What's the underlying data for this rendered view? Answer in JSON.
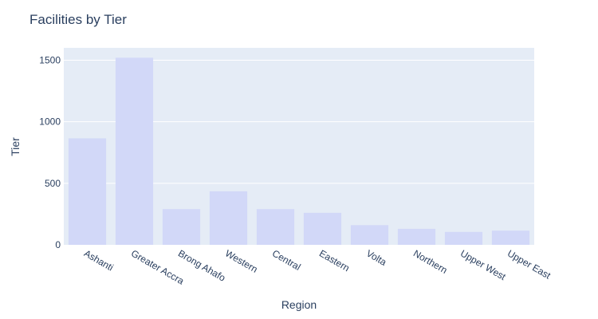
{
  "chart_data": {
    "type": "bar",
    "title": "Facilities by Tier",
    "xlabel": "Region",
    "ylabel": "Tier",
    "categories": [
      "Ashanti",
      "Greater Accra",
      "Brong Ahafo",
      "Western",
      "Central",
      "Eastern",
      "Volta",
      "Northern",
      "Upper West",
      "Upper East"
    ],
    "values": [
      865,
      1520,
      290,
      435,
      290,
      260,
      160,
      130,
      105,
      115
    ],
    "yticks": [
      0,
      500,
      1000,
      1500
    ],
    "ylim": [
      0,
      1600
    ],
    "grid": true,
    "colors": {
      "plot_bg": "#e5ecf6",
      "bar": "#d2d8f8",
      "text": "#2a3f5f",
      "grid": "#ffffff"
    }
  }
}
